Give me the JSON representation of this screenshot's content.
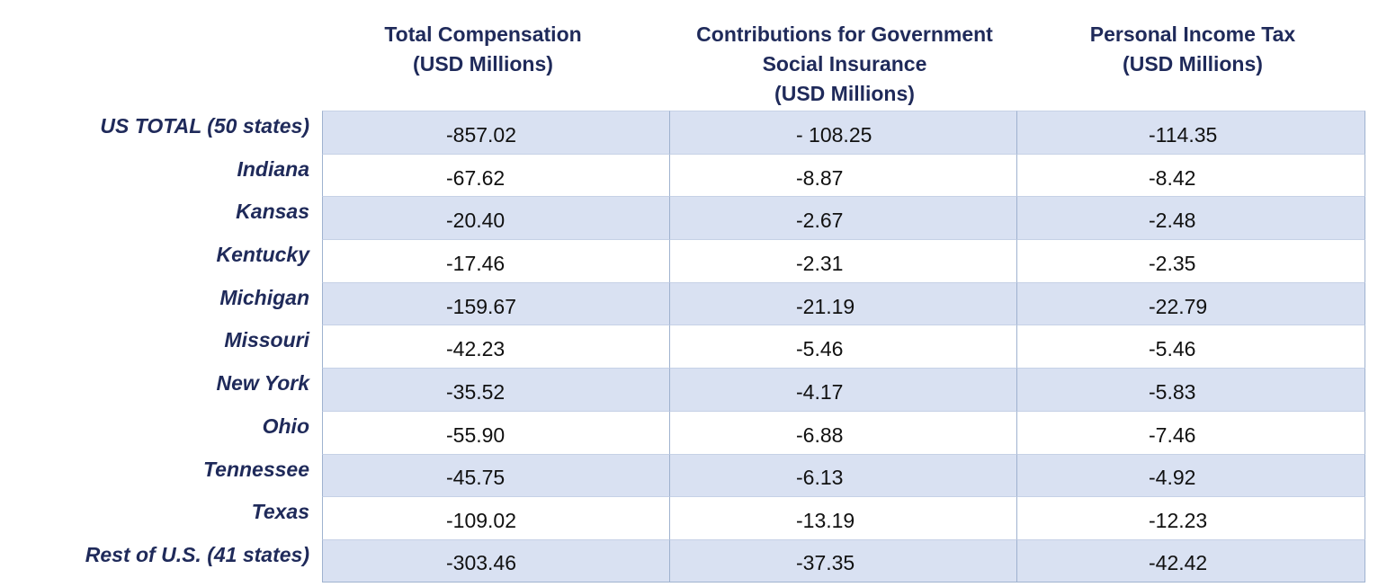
{
  "headers": {
    "total_comp": [
      "Total Compensation",
      "(USD Millions)"
    ],
    "contrib": [
      "Contributions for Government",
      "Social Insurance",
      "(USD Millions)"
    ],
    "income_tax": [
      "Personal Income Tax",
      "(USD Millions)"
    ]
  },
  "rows": [
    {
      "label": "US TOTAL (50 states)",
      "total_comp": "-857.02",
      "contrib": "- 108.25",
      "income_tax": "-114.35"
    },
    {
      "label": "Indiana",
      "total_comp": "-67.62",
      "contrib": "-8.87",
      "income_tax": "-8.42"
    },
    {
      "label": "Kansas",
      "total_comp": "-20.40",
      "contrib": "-2.67",
      "income_tax": "-2.48"
    },
    {
      "label": "Kentucky",
      "total_comp": "-17.46",
      "contrib": "-2.31",
      "income_tax": "-2.35"
    },
    {
      "label": "Michigan",
      "total_comp": "-159.67",
      "contrib": "-21.19",
      "income_tax": "-22.79"
    },
    {
      "label": "Missouri",
      "total_comp": "-42.23",
      "contrib": "-5.46",
      "income_tax": "-5.46"
    },
    {
      "label": "New York",
      "total_comp": "-35.52",
      "contrib": "-4.17",
      "income_tax": "-5.83"
    },
    {
      "label": "Ohio",
      "total_comp": "-55.90",
      "contrib": "-6.88",
      "income_tax": "-7.46"
    },
    {
      "label": "Tennessee",
      "total_comp": "-45.75",
      "contrib": "-6.13",
      "income_tax": "-4.92"
    },
    {
      "label": "Texas",
      "total_comp": "-109.02",
      "contrib": "-13.19",
      "income_tax": "-12.23"
    },
    {
      "label": "Rest of U.S. (41 states)",
      "total_comp": "-303.46",
      "contrib": "-37.35",
      "income_tax": "-42.42"
    }
  ],
  "colors": {
    "header_text": "#1f2a5a",
    "shaded_row": "#d9e1f2",
    "border": "#9fb2cf"
  }
}
